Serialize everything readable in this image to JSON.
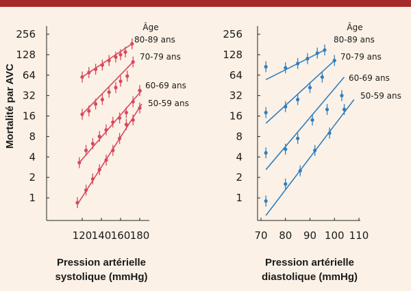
{
  "colors": {
    "background": "#fbf1e6",
    "topbar": "#a52a2a",
    "systolic": "#d9475c",
    "diastolic": "#2f7fbf"
  },
  "chart_data": [
    {
      "type": "scatter",
      "ylabel": "Mortalité par AVC",
      "xlabel_line1": "Pression artérielle",
      "xlabel_line2": "systolique (mmHg)",
      "legend_title": "Âge",
      "y_scale": "log2",
      "ylim": [
        0.6,
        300
      ],
      "xlim": [
        115,
        183
      ],
      "x_ticks": [
        120,
        140,
        160,
        180
      ],
      "y_ticks": [
        1,
        2,
        4,
        8,
        16,
        32,
        64,
        128,
        256
      ],
      "series": [
        {
          "name": "80-89 ans",
          "fit": [
            [
              120,
              60
            ],
            [
              172,
              185
            ]
          ],
          "points": [
            [
              120,
              60
            ],
            [
              127,
              70
            ],
            [
              134,
              78
            ],
            [
              141,
              90
            ],
            [
              148,
              105
            ],
            [
              155,
              118
            ],
            [
              160,
              128
            ],
            [
              165,
              140
            ],
            [
              172,
              185
            ]
          ]
        },
        {
          "name": "70-79 ans",
          "fit": [
            [
              120,
              17
            ],
            [
              173,
              100
            ]
          ],
          "points": [
            [
              120,
              17
            ],
            [
              127,
              19
            ],
            [
              134,
              24
            ],
            [
              141,
              28
            ],
            [
              148,
              36
            ],
            [
              155,
              42
            ],
            [
              160,
              52
            ],
            [
              167,
              62
            ],
            [
              173,
              100
            ]
          ]
        },
        {
          "name": "60-69 ans",
          "fit": [
            [
              117,
              3.3
            ],
            [
              182,
              38
            ]
          ],
          "points": [
            [
              117,
              3.3
            ],
            [
              124,
              5
            ],
            [
              131,
              6.3
            ],
            [
              138,
              8
            ],
            [
              145,
              10
            ],
            [
              152,
              13
            ],
            [
              159,
              15
            ],
            [
              166,
              18
            ],
            [
              173,
              26
            ],
            [
              180,
              38
            ]
          ]
        },
        {
          "name": "50-59 ans",
          "fit": [
            [
              115,
              0.8
            ],
            [
              182,
              24
            ]
          ],
          "points": [
            [
              115,
              0.85
            ],
            [
              124,
              1.3
            ],
            [
              131,
              1.9
            ],
            [
              138,
              2.6
            ],
            [
              145,
              3.6
            ],
            [
              152,
              5
            ],
            [
              159,
              7.5
            ],
            [
              166,
              12
            ],
            [
              173,
              14
            ],
            [
              180,
              21
            ]
          ]
        }
      ]
    },
    {
      "type": "scatter",
      "ylabel": "",
      "xlabel_line1": "Pression artérielle",
      "xlabel_line2": "diastolique (mmHg)",
      "legend_title": "Âge",
      "y_scale": "log2",
      "ylim": [
        0.6,
        300
      ],
      "xlim": [
        67,
        112
      ],
      "x_ticks": [
        70,
        80,
        90,
        100,
        110
      ],
      "y_ticks": [
        1,
        2,
        4,
        8,
        16,
        32,
        64,
        128,
        256
      ],
      "series": [
        {
          "name": "80-89 ans",
          "fit": [
            [
              72,
              55
            ],
            [
              96,
              150
            ]
          ],
          "points": [
            [
              72,
              85
            ],
            [
              80,
              82
            ],
            [
              85,
              95
            ],
            [
              89,
              112
            ],
            [
              93,
              135
            ],
            [
              96,
              150
            ]
          ]
        },
        {
          "name": "70-79 ans",
          "fit": [
            [
              72,
              12.5
            ],
            [
              100,
              105
            ]
          ],
          "points": [
            [
              72,
              18
            ],
            [
              80,
              22
            ],
            [
              85,
              28
            ],
            [
              90,
              42
            ],
            [
              95,
              60
            ],
            [
              100,
              105
            ]
          ]
        },
        {
          "name": "60-69 ans",
          "fit": [
            [
              72,
              2.6
            ],
            [
              104,
              60
            ]
          ],
          "points": [
            [
              72,
              4.6
            ],
            [
              80,
              5.2
            ],
            [
              85,
              7.5
            ],
            [
              91,
              14
            ],
            [
              97,
              20
            ],
            [
              103,
              32
            ]
          ]
        },
        {
          "name": "50-59 ans",
          "fit": [
            [
              72,
              0.55
            ],
            [
              108,
              28
            ]
          ],
          "points": [
            [
              72,
              0.9
            ],
            [
              80,
              1.6
            ],
            [
              86,
              2.5
            ],
            [
              92,
              5
            ],
            [
              98,
              9
            ],
            [
              104,
              20
            ]
          ]
        }
      ]
    }
  ]
}
